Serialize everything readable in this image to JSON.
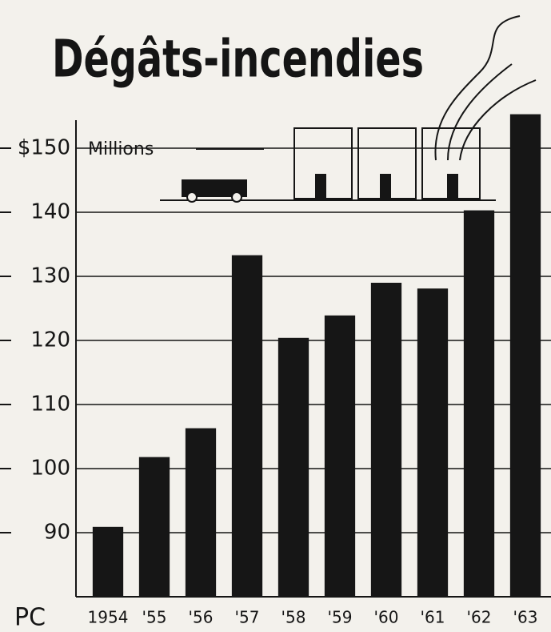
{
  "chart_data": {
    "type": "bar",
    "title": "Dégâts-incendies",
    "y_label": "Millions",
    "footnote": "PC",
    "categories": [
      "1954",
      "'55",
      "'56",
      "'57",
      "'58",
      "'59",
      "'60",
      "'61",
      "'62",
      "'63"
    ],
    "values": [
      90.9,
      101.8,
      106.3,
      133.3,
      120.4,
      123.9,
      129,
      128.1,
      140.3,
      155.3
    ],
    "color": "#161616",
    "ylim": [
      80,
      156
    ],
    "yticks": [
      90,
      100,
      110,
      120,
      130,
      140,
      {
        "value": 150,
        "label": "$150"
      }
    ],
    "grid": true
  }
}
